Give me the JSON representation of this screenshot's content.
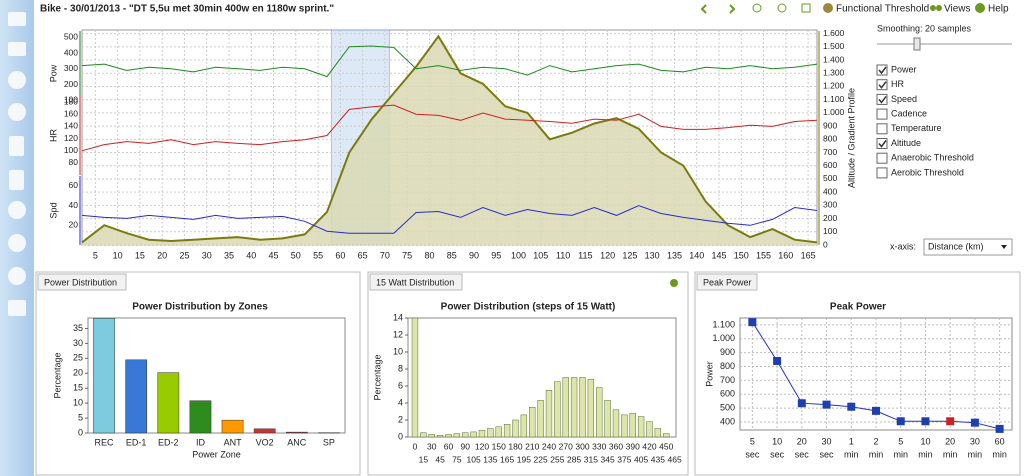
{
  "header": {
    "title": "Bike - 30/01/2013 - \"DT 5,5u met 30min 400w en 1180w sprint.\"",
    "tools": [
      "Functional Threshold",
      "Views",
      "Help"
    ]
  },
  "panel": {
    "smoothing": "Smoothing: 20 samples",
    "checkboxes": [
      {
        "label": "Power",
        "checked": true
      },
      {
        "label": "HR",
        "checked": true
      },
      {
        "label": "Speed",
        "checked": true
      },
      {
        "label": "Cadence",
        "checked": false
      },
      {
        "label": "Temperature",
        "checked": false
      },
      {
        "label": "Altitude",
        "checked": true
      },
      {
        "label": "Anaerobic Threshold",
        "checked": false
      },
      {
        "label": "Aerobic Threshold",
        "checked": false
      }
    ],
    "xaxis_label": "x-axis:",
    "xaxis_value": "Distance (km)"
  },
  "tabs": [
    "Power Distribution",
    "15 Watt Distribution",
    "Peak Power"
  ],
  "chart_data": [
    {
      "type": "combo",
      "x": [
        2,
        7,
        12,
        17,
        22,
        27,
        32,
        37,
        42,
        47,
        52,
        57,
        62,
        67,
        72,
        77,
        82,
        87,
        92,
        97,
        102,
        107,
        112,
        117,
        122,
        127,
        132,
        137,
        142,
        147,
        152,
        157,
        162,
        167
      ],
      "xlim": [
        2,
        167
      ],
      "xticks": [
        5,
        10,
        15,
        20,
        25,
        30,
        35,
        40,
        45,
        50,
        55,
        60,
        65,
        70,
        75,
        80,
        85,
        90,
        95,
        100,
        105,
        110,
        115,
        120,
        125,
        130,
        135,
        140,
        145,
        150,
        155,
        160,
        165
      ],
      "grid": true,
      "highlight_range": [
        58,
        71
      ],
      "axes": [
        {
          "label": "Pow",
          "color": "#1e7d1e",
          "ylim": [
            0,
            540
          ],
          "yticks": [
            100,
            200,
            300,
            400,
            500
          ]
        },
        {
          "label": "HR",
          "color": "#cc2222",
          "ylim": [
            60,
            190
          ],
          "yticks": [
            80,
            100,
            120,
            140,
            160,
            180
          ]
        },
        {
          "label": "Spd",
          "color": "#2a2acc",
          "ylim": [
            0,
            70
          ],
          "yticks": [
            20,
            40,
            60
          ]
        },
        {
          "label": "Altitude / Gradient Profile",
          "color": "#7a7a10",
          "ylim": [
            0,
            1620
          ],
          "yticks": [
            0,
            100,
            200,
            300,
            400,
            500,
            600,
            700,
            800,
            900,
            {
              "value": 1000,
              "label": "1.000"
            },
            {
              "value": 1100,
              "label": "1.100"
            },
            {
              "value": 1200,
              "label": "1.200"
            },
            {
              "value": 1300,
              "label": "1.300"
            },
            {
              "value": 1400,
              "label": "1.400"
            },
            {
              "value": 1500,
              "label": "1.500"
            },
            {
              "value": 1600,
              "label": "1.600"
            }
          ]
        }
      ],
      "series": [
        {
          "name": "Altitude",
          "axis": 3,
          "color": "#7a7a10",
          "fill": "#d9d9b4",
          "values": [
            20,
            150,
            90,
            40,
            30,
            40,
            50,
            60,
            40,
            50,
            80,
            250,
            700,
            950,
            1150,
            1350,
            1580,
            1300,
            1220,
            1050,
            1000,
            800,
            850,
            920,
            960,
            880,
            700,
            600,
            330,
            150,
            60,
            120,
            40,
            20
          ]
        },
        {
          "name": "Power",
          "axis": 0,
          "color": "#1e8a1e",
          "values": [
            320,
            330,
            290,
            310,
            300,
            280,
            310,
            300,
            290,
            310,
            300,
            250,
            440,
            445,
            435,
            300,
            320,
            290,
            310,
            300,
            260,
            320,
            280,
            300,
            320,
            330,
            290,
            280,
            310,
            300,
            320,
            300,
            310,
            330
          ]
        },
        {
          "name": "HR",
          "axis": 1,
          "color": "#cc2222",
          "values": [
            100,
            110,
            115,
            112,
            118,
            110,
            115,
            112,
            110,
            115,
            118,
            125,
            168,
            172,
            175,
            160,
            158,
            150,
            162,
            152,
            150,
            148,
            145,
            152,
            150,
            160,
            140,
            135,
            135,
            138,
            142,
            140,
            148,
            150
          ]
        },
        {
          "name": "Speed",
          "axis": 2,
          "color": "#2a2acc",
          "values": [
            30,
            28,
            27,
            30,
            28,
            26,
            30,
            27,
            28,
            29,
            24,
            14,
            12,
            12,
            12,
            33,
            34,
            28,
            38,
            30,
            36,
            32,
            30,
            38,
            30,
            40,
            32,
            28,
            25,
            22,
            20,
            26,
            38,
            35
          ]
        }
      ]
    },
    {
      "type": "bar",
      "title": "Power Distribution by Zones",
      "xlabel": "Power Zone",
      "ylabel": "Percentage",
      "categories": [
        "REC",
        "ED-1",
        "ED-2",
        "ID",
        "ANT",
        "VO2",
        "ANC",
        "SP"
      ],
      "values": [
        38.4,
        24.5,
        20.2,
        10.8,
        4.3,
        1.4,
        0.3,
        0.1
      ],
      "colors": [
        "#7ecbe0",
        "#3a78d8",
        "#99cc00",
        "#2e8b1e",
        "#ff9900",
        "#cc3333",
        "#993333",
        "#666666"
      ],
      "ylim": [
        0,
        38.5
      ],
      "yticks": [
        0,
        5,
        10,
        15,
        20,
        25,
        30,
        35
      ]
    },
    {
      "type": "histogram",
      "title": "Power Distribution (steps of 15 Watt)",
      "ylabel": "Percentage",
      "bins": [
        0,
        15,
        30,
        45,
        60,
        75,
        90,
        105,
        120,
        135,
        150,
        165,
        180,
        195,
        210,
        225,
        240,
        255,
        270,
        285,
        300,
        315,
        330,
        345,
        360,
        375,
        390,
        405,
        420,
        435,
        450,
        465
      ],
      "values": [
        14,
        0.5,
        0.3,
        0.2,
        0.3,
        0.4,
        0.5,
        0.6,
        0.8,
        1,
        1.2,
        1.5,
        2,
        2.6,
        3.5,
        4.3,
        5.5,
        6.5,
        7,
        7,
        7,
        6.8,
        5.8,
        4.3,
        3.2,
        2.6,
        2.8,
        2.4,
        1.8,
        1,
        0.4
      ],
      "color": "#dde6a8",
      "xlim": [
        -5,
        475
      ],
      "ylim": [
        0,
        14
      ],
      "yticks": [
        0,
        2,
        4,
        6,
        8,
        10,
        12,
        14
      ]
    },
    {
      "type": "line",
      "title": "Peak Power",
      "ylabel": "Power",
      "categories": [
        [
          "5",
          "sec"
        ],
        [
          "10",
          "sec"
        ],
        [
          "20",
          "sec"
        ],
        [
          "30",
          "sec"
        ],
        [
          "1",
          "min"
        ],
        [
          "2",
          "min"
        ],
        [
          "5",
          "min"
        ],
        [
          "10",
          "min"
        ],
        [
          "20",
          "min"
        ],
        [
          "30",
          "min"
        ],
        [
          "60",
          "min"
        ]
      ],
      "values": [
        1120,
        840,
        535,
        525,
        510,
        480,
        405,
        405,
        405,
        395,
        350
      ],
      "color": "#2233cc",
      "marker_colors": [
        "#1f3fae",
        "#1f3fae",
        "#1f3fae",
        "#1f3fae",
        "#1f3fae",
        "#1f3fae",
        "#1f3fae",
        "#1f3fae",
        "#cc2222",
        "#1f3fae",
        "#1f3fae"
      ],
      "ylim": [
        342,
        1150
      ],
      "yticks": [
        400,
        500,
        600,
        700,
        800,
        900,
        {
          "value": 1000,
          "label": "1.000"
        },
        {
          "value": 1100,
          "label": "1.100"
        }
      ],
      "grid": true
    }
  ]
}
